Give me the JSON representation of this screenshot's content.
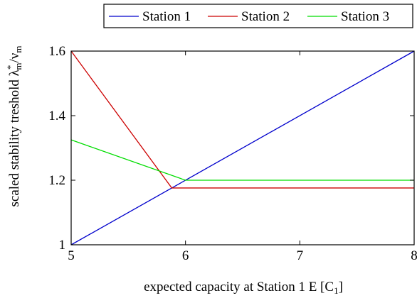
{
  "chart_data": {
    "type": "line",
    "title": "",
    "xlabel": "expected capacity at Station 1 E [C",
    "xlabel_sub": "1",
    "xlabel_close": "]",
    "ylabel": "scaled stability treshold λ",
    "ylabel_sub": "m",
    "ylabel_sup": "*",
    "ylabel_tail": "/ν",
    "ylabel_tail_sub": "m",
    "xlim": [
      5,
      8
    ],
    "ylim": [
      1,
      1.6
    ],
    "x_ticks": [
      5,
      6,
      7,
      8
    ],
    "x_tick_labels": [
      "5",
      "6",
      "7",
      "8"
    ],
    "y_ticks": [
      1,
      1.2,
      1.4,
      1.6
    ],
    "y_tick_labels": [
      "1",
      "1.2",
      "1.4",
      "1.6"
    ],
    "grid": false,
    "legend_position": "top-right, above plot",
    "series": [
      {
        "name": "Station 1",
        "color": "#0000cc",
        "points": [
          [
            5,
            1.0
          ],
          [
            8,
            1.6
          ]
        ]
      },
      {
        "name": "Station 2",
        "color": "#cc0000",
        "points": [
          [
            5,
            1.6
          ],
          [
            5.88,
            1.176
          ],
          [
            8,
            1.176
          ]
        ]
      },
      {
        "name": "Station 3",
        "color": "#00dd00",
        "points": [
          [
            5,
            1.325
          ],
          [
            6.0,
            1.2
          ],
          [
            8,
            1.2
          ]
        ]
      }
    ]
  }
}
